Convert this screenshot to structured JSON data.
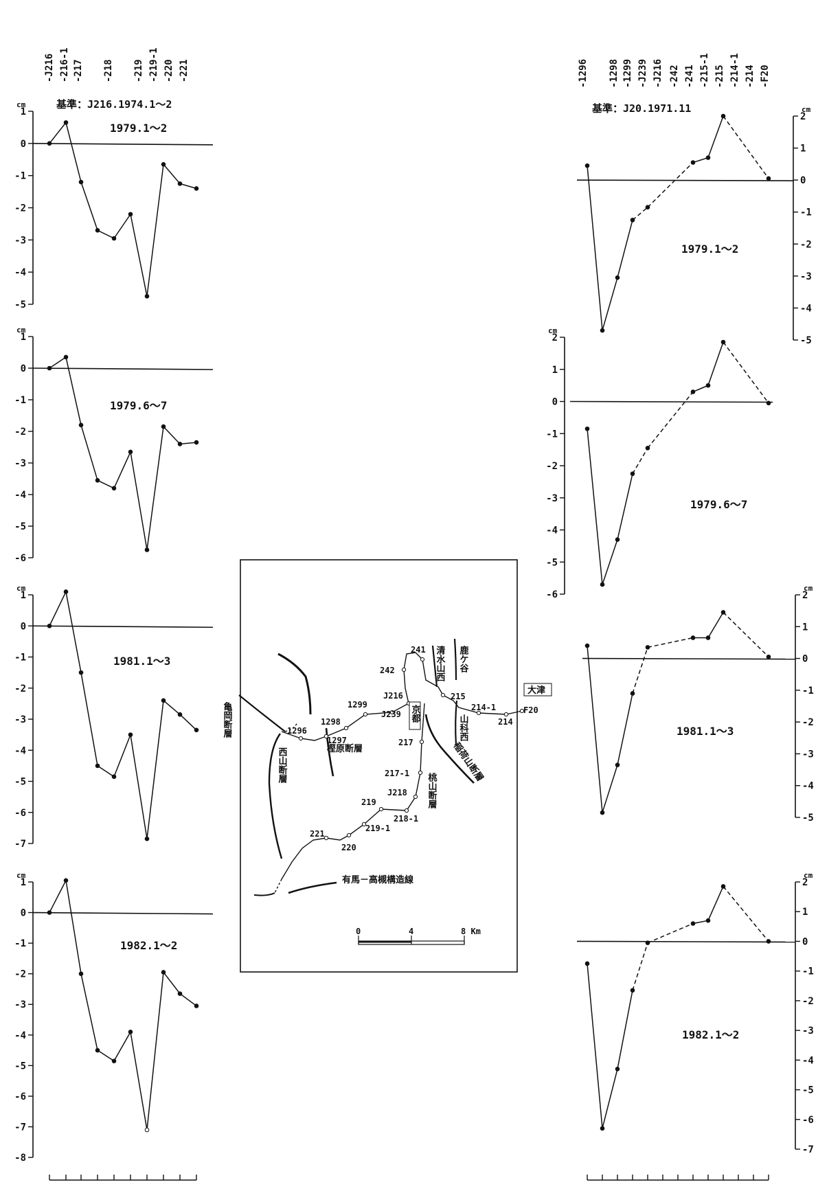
{
  "left_header": {
    "station_labels": [
      "-J216",
      "-216-1",
      "-217",
      "-218",
      "-219",
      "-219-1",
      "-220",
      "-221"
    ],
    "reference": "基準：J216.1974.1～2"
  },
  "right_header": {
    "station_labels": [
      "-1296",
      "-1298",
      "-1299",
      "-J239",
      "-J216",
      "-242",
      "-241",
      "-215-1",
      "-215",
      "-214-1",
      "-214",
      "-F20"
    ],
    "reference": "基準：J20.1971.11"
  },
  "chart_data": [
    {
      "type": "line",
      "title": "1979.1～2",
      "ylabel": "cm",
      "ylim": [
        -5,
        1
      ],
      "yticks": [
        "1",
        "0",
        "-1",
        "-2",
        "-3",
        "-4",
        "-5"
      ],
      "x": [
        0,
        1,
        2,
        3,
        4,
        5,
        6,
        7,
        8,
        9
      ],
      "values": [
        0,
        0.65,
        -1.2,
        -2.7,
        -2.95,
        -2.2,
        -4.75,
        -0.65,
        -1.25,
        -1.4
      ],
      "dashed_segments": []
    },
    {
      "type": "line",
      "title": "1979.6～7",
      "ylabel": "cm",
      "ylim": [
        -6,
        1
      ],
      "yticks": [
        "1",
        "0",
        "-1",
        "-2",
        "-3",
        "-4",
        "-5",
        "-6"
      ],
      "x": [
        0,
        1,
        2,
        3,
        4,
        5,
        6,
        7,
        8,
        9
      ],
      "values": [
        0,
        0.35,
        -1.8,
        -3.55,
        -3.8,
        -2.65,
        -5.75,
        -1.85,
        -2.4,
        -2.35
      ],
      "dashed_segments": []
    },
    {
      "type": "line",
      "title": "1981.1～3",
      "ylabel": "cm",
      "ylim": [
        -7,
        1
      ],
      "yticks": [
        "1",
        "0",
        "-1",
        "-2",
        "-3",
        "-4",
        "-5",
        "-6",
        "-7"
      ],
      "x": [
        0,
        1,
        2,
        3,
        4,
        5,
        6,
        7,
        8,
        9
      ],
      "values": [
        0,
        1.1,
        -1.5,
        -4.5,
        -4.85,
        -3.5,
        -6.85,
        -2.4,
        -2.85,
        -3.35
      ],
      "dashed_segments": []
    },
    {
      "type": "line",
      "title": "1982.1～2",
      "ylabel": "cm",
      "ylim": [
        -8,
        1
      ],
      "yticks": [
        "1",
        "0",
        "-1",
        "-2",
        "-3",
        "-4",
        "-5",
        "-6",
        "-7",
        "-8"
      ],
      "x": [
        0,
        1,
        2,
        3,
        4,
        5,
        6,
        7,
        8,
        9
      ],
      "values": [
        0,
        1.05,
        -2.0,
        -4.5,
        -4.85,
        -3.9,
        -7.1,
        -1.95,
        -2.65,
        -3.05
      ],
      "dashed_segments": []
    },
    {
      "type": "line",
      "title": "1979.1～2",
      "ylabel": "cm",
      "ylim": [
        -5,
        2
      ],
      "yticks": [
        "2",
        "1",
        "0",
        "-1",
        "-2",
        "-3",
        "-4",
        "-5"
      ],
      "x": [
        0,
        1,
        2,
        3,
        4,
        5,
        6,
        7,
        8,
        9,
        10,
        11,
        12
      ],
      "values": [
        0.45,
        -4.7,
        -3.05,
        -1.25,
        -0.85,
        null,
        null,
        0.55,
        0.7,
        2.0,
        null,
        null,
        0.05
      ],
      "dashed_segments": [
        [
          3,
          4
        ],
        [
          4,
          7
        ],
        [
          9,
          12
        ]
      ]
    },
    {
      "type": "line",
      "title": "1979.6～7",
      "ylabel": "cm",
      "ylim": [
        -6,
        2
      ],
      "yticks": [
        "2",
        "1",
        "0",
        "-1",
        "-2",
        "-3",
        "-4",
        "-5",
        "-6"
      ],
      "x": [
        0,
        1,
        2,
        3,
        4,
        5,
        6,
        7,
        8,
        9,
        10,
        11,
        12
      ],
      "values": [
        -0.85,
        -5.7,
        -4.3,
        -2.25,
        -1.45,
        null,
        null,
        0.3,
        0.5,
        1.85,
        null,
        null,
        -0.05
      ],
      "dashed_segments": [
        [
          3,
          4
        ],
        [
          4,
          7
        ],
        [
          9,
          12
        ]
      ]
    },
    {
      "type": "line",
      "title": "1981.1～3",
      "ylabel": "cm",
      "ylim": [
        -5,
        2
      ],
      "yticks": [
        "2",
        "1",
        "0",
        "-1",
        "-2",
        "-3",
        "-4",
        "-5"
      ],
      "x": [
        0,
        1,
        2,
        3,
        4,
        5,
        6,
        7,
        8,
        9,
        10,
        11,
        12
      ],
      "values": [
        0.4,
        -4.85,
        -3.35,
        -1.1,
        0.35,
        null,
        null,
        0.65,
        0.65,
        1.45,
        null,
        null,
        0.05
      ],
      "dashed_segments": [
        [
          3,
          4
        ],
        [
          4,
          7
        ],
        [
          9,
          12
        ]
      ]
    },
    {
      "type": "line",
      "title": "1982.1～2",
      "ylabel": "cm",
      "ylim": [
        -7,
        2
      ],
      "yticks": [
        "2",
        "1",
        "0",
        "-1",
        "-2",
        "-3",
        "-4",
        "-5",
        "-6",
        "-7"
      ],
      "x": [
        0,
        1,
        2,
        3,
        4,
        5,
        6,
        7,
        8,
        9,
        10,
        11,
        12
      ],
      "values": [
        -0.75,
        -6.3,
        -4.3,
        -1.65,
        -0.05,
        null,
        null,
        0.6,
        0.7,
        1.85,
        null,
        null,
        0.0
      ],
      "dashed_segments": [
        [
          3,
          4
        ],
        [
          4,
          7
        ],
        [
          9,
          12
        ]
      ]
    }
  ],
  "map": {
    "stations": [
      "1296",
      "1297",
      "1298",
      "1299",
      "J216",
      "J239",
      "241",
      "242",
      "215",
      "214-1",
      "214",
      "F20",
      "217",
      "217-1",
      "J218",
      "218-1",
      "219",
      "219-1",
      "220",
      "221"
    ],
    "fault_labels": [
      "亀岡断層",
      "西山断層",
      "樫原断層",
      "桃山断層",
      "清水山西",
      "鹿ケ谷",
      "山科西",
      "稲荷山断層",
      "有馬－高槻構造線"
    ],
    "boxed_labels": [
      "京都",
      "大津"
    ],
    "scale_ticks": [
      "0",
      "4",
      "8 Km"
    ]
  }
}
